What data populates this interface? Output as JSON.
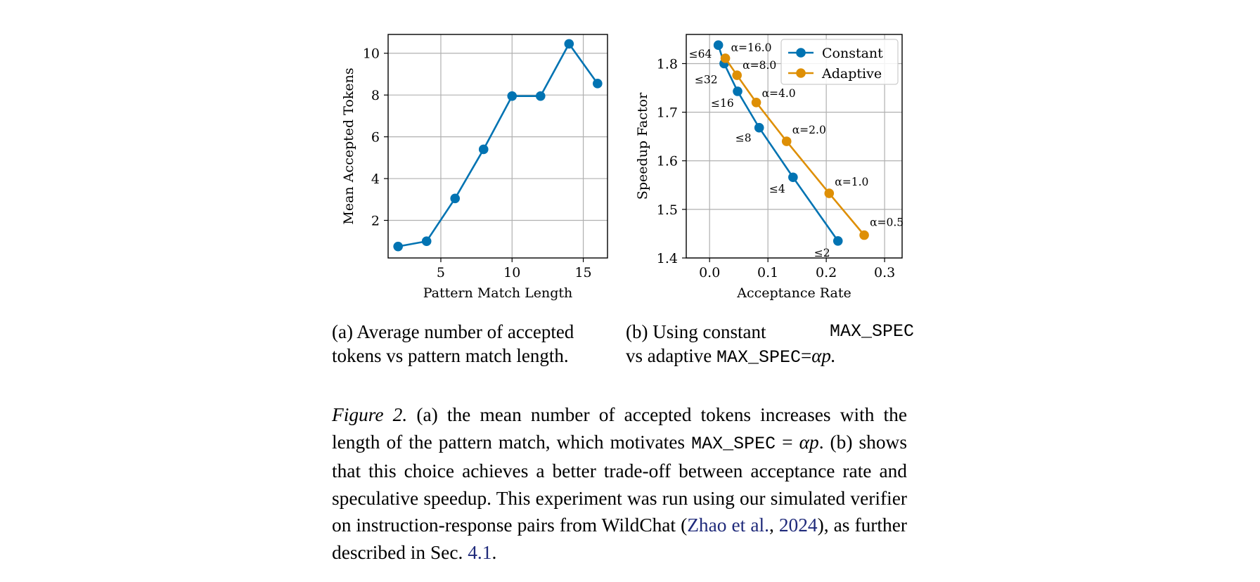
{
  "chart_data": [
    {
      "type": "line",
      "panel": "a",
      "xlabel": "Pattern Match Length",
      "ylabel": "Mean Accepted Tokens",
      "xlim": [
        1.3,
        16.7
      ],
      "ylim": [
        0.2,
        10.9
      ],
      "xticks": [
        5,
        10,
        15
      ],
      "yticks": [
        2,
        4,
        6,
        8,
        10
      ],
      "grid": true,
      "color": "#0173b2",
      "x": [
        2,
        4,
        6,
        8,
        10,
        12,
        14,
        16
      ],
      "y": [
        0.75,
        1.0,
        3.05,
        5.4,
        7.95,
        7.95,
        10.45,
        8.55
      ]
    },
    {
      "type": "line",
      "panel": "b",
      "xlabel": "Acceptance Rate",
      "ylabel": "Speedup Factor",
      "xlim": [
        -0.04,
        0.33
      ],
      "ylim": [
        1.4,
        1.86
      ],
      "xticks": [
        0.0,
        0.1,
        0.2,
        0.3
      ],
      "xtick_labels": [
        "0.0",
        "0.1",
        "0.2",
        "0.3"
      ],
      "yticks": [
        1.4,
        1.5,
        1.6,
        1.7,
        1.8
      ],
      "ytick_labels": [
        "1.4",
        "1.5",
        "1.6",
        "1.7",
        "1.8"
      ],
      "grid": true,
      "legend_position": "top-right",
      "series": [
        {
          "name": "Constant",
          "color": "#0173b2",
          "x": [
            0.015,
            0.025,
            0.048,
            0.085,
            0.143,
            0.22
          ],
          "y": [
            1.838,
            1.8,
            1.743,
            1.668,
            1.566,
            1.435
          ],
          "labels": [
            "≤64",
            "≤32",
            "≤16",
            "≤8",
            "≤4",
            "≤2"
          ]
        },
        {
          "name": "Adaptive",
          "color": "#de8f05",
          "x": [
            0.027,
            0.047,
            0.08,
            0.132,
            0.205,
            0.265
          ],
          "y": [
            1.811,
            1.776,
            1.72,
            1.64,
            1.533,
            1.447
          ],
          "labels": [
            "α=16.0",
            "α=8.0",
            "α=4.0",
            "α=2.0",
            "α=1.0",
            "α=0.5"
          ]
        }
      ]
    }
  ],
  "subcaptions": {
    "a": {
      "line1": "(a) Average number of accepted",
      "line2": "tokens vs pattern match length."
    },
    "b": {
      "l1_lead": "(b) Using constant",
      "l1_code": "MAX_SPEC",
      "l2_lead": "vs adaptive",
      "l2_code": "MAX_SPEC",
      "l2_eq": "=",
      "l2_math": "αp."
    }
  },
  "caption": {
    "label": "Figure 2.",
    "t1": " (a) the mean number of accepted tokens increases with the length of the pattern match, which motivates ",
    "code": "MAX_SPEC",
    "eq": " = ",
    "math": "αp",
    "t2": ". (b) shows that this choice achieves a better trade-off between acceptance rate and speculative speedup. This experiment was run using our simulated verifier on instruction-response pairs from WildChat (",
    "cite_author": "Zhao et al.",
    "cite_sep": ", ",
    "cite_year": "2024",
    "t3": "), as further described in Sec. ",
    "sec": "4.1",
    "t4": "."
  }
}
